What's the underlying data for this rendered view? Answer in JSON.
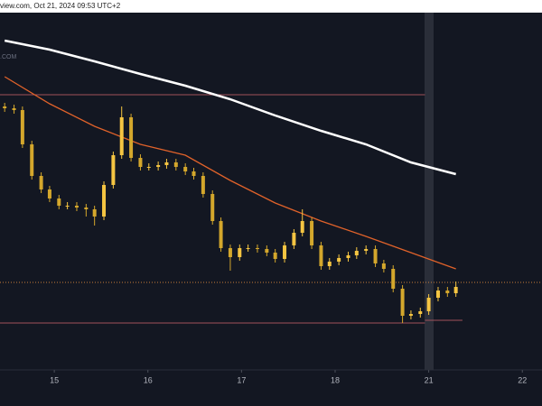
{
  "header": {
    "source": "view.com, Oct 21, 2024 09:53 UTC+2",
    "watermark": ".COM"
  },
  "chart_data": {
    "type": "candlestick",
    "x": [
      14.47,
      14.57,
      14.66,
      14.76,
      14.86,
      14.95,
      15.05,
      15.14,
      15.24,
      15.34,
      15.43,
      15.53,
      15.63,
      15.72,
      15.82,
      15.92,
      16.01,
      16.11,
      16.2,
      16.3,
      16.4,
      16.49,
      16.59,
      16.69,
      16.78,
      16.88,
      16.98,
      17.07,
      17.17,
      17.27,
      17.36,
      17.46,
      17.56,
      17.65,
      17.75,
      17.85,
      17.94,
      18.04,
      18.14,
      18.23,
      18.33,
      18.43,
      18.52,
      18.62,
      18.72,
      18.81,
      18.91,
      19.0,
      19.1,
      19.2,
      19.29
    ],
    "open": [
      292,
      290,
      288,
      250,
      215,
      200,
      190,
      182,
      182,
      180,
      178,
      170,
      205,
      238,
      280,
      235,
      225,
      225,
      227,
      230,
      225,
      220,
      215,
      195,
      165,
      135,
      125,
      135,
      135,
      134,
      130,
      123,
      138,
      152,
      165,
      138,
      115,
      120,
      124,
      127,
      132,
      134,
      118,
      112,
      90,
      60,
      62,
      65,
      80,
      88,
      85
    ],
    "close": [
      290,
      288,
      250,
      215,
      200,
      190,
      182,
      182,
      180,
      178,
      170,
      205,
      238,
      280,
      235,
      225,
      225,
      227,
      230,
      225,
      220,
      215,
      195,
      165,
      135,
      125,
      135,
      135,
      134,
      130,
      123,
      138,
      152,
      165,
      138,
      115,
      120,
      124,
      127,
      132,
      134,
      118,
      112,
      90,
      60,
      62,
      65,
      80,
      88,
      85,
      92
    ],
    "high": [
      296,
      294,
      292,
      254,
      219,
      204,
      194,
      186,
      186,
      184,
      182,
      209,
      242,
      292,
      284,
      239,
      229,
      231,
      234,
      234,
      229,
      224,
      219,
      199,
      169,
      139,
      139,
      139,
      139,
      138,
      134,
      142,
      156,
      178,
      169,
      142,
      124,
      128,
      131,
      136,
      138,
      138,
      122,
      116,
      94,
      66,
      69,
      84,
      92,
      92,
      98
    ],
    "low": [
      286,
      284,
      246,
      211,
      196,
      186,
      178,
      178,
      176,
      170,
      160,
      166,
      201,
      234,
      231,
      221,
      221,
      221,
      223,
      221,
      216,
      211,
      191,
      161,
      131,
      110,
      121,
      131,
      130,
      126,
      119,
      119,
      134,
      148,
      134,
      111,
      111,
      116,
      120,
      123,
      128,
      114,
      108,
      86,
      52,
      56,
      58,
      61,
      76,
      81,
      81
    ],
    "up_color": "#f5c542",
    "down_color": "#d4a72c",
    "lines": [
      {
        "color": "#ffffff",
        "width": 2.5,
        "x": [
          14.47,
          14.95,
          15.43,
          15.92,
          16.4,
          16.88,
          17.36,
          17.85,
          18.33,
          18.81,
          19.29
        ],
        "values": [
          365,
          355,
          342,
          328,
          315,
          300,
          282,
          265,
          250,
          230,
          217
        ]
      },
      {
        "color": "#e0622a",
        "width": 1.3,
        "x": [
          14.47,
          14.95,
          15.43,
          15.92,
          16.4,
          16.88,
          17.36,
          17.85,
          18.33,
          18.81,
          19.29
        ],
        "values": [
          325,
          295,
          270,
          250,
          238,
          210,
          185,
          165,
          148,
          130,
          112
        ]
      }
    ],
    "levels": [
      {
        "value": 305,
        "color": "#a0525a",
        "x": [
          14.42,
          18.96
        ]
      },
      {
        "value": 97,
        "color": "#c97d3a",
        "x": [
          14.42,
          20.21
        ],
        "dashed": true
      },
      {
        "value": 52,
        "color": "#a0525a",
        "x": [
          14.42,
          18.96
        ]
      },
      {
        "value": 55,
        "color": "#a0525a",
        "x": [
          18.96,
          19.36
        ]
      }
    ],
    "xlim": [
      14.42,
      20.21
    ],
    "ylim": [
      0,
      396
    ],
    "xticks": [
      15,
      16,
      17,
      18,
      {
        "value": 19,
        "label": "21"
      },
      {
        "value": 20,
        "label": "22"
      }
    ]
  }
}
